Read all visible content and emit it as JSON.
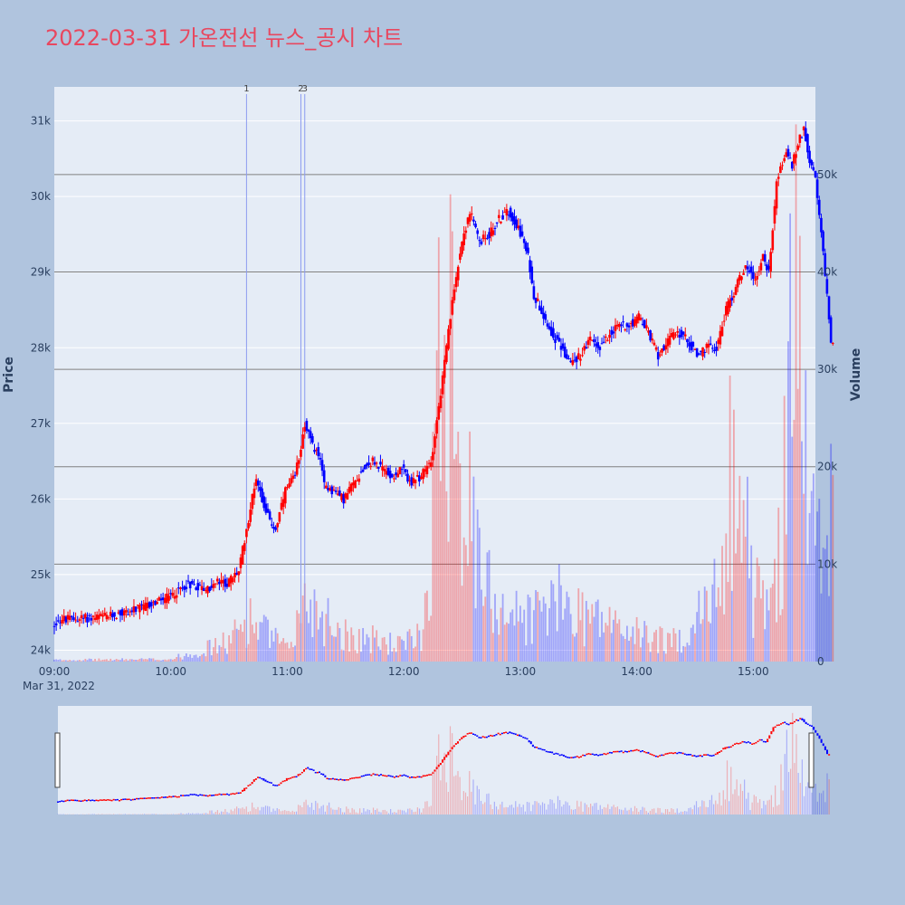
{
  "title": "2022-03-31 가온전선 뉴스_공시 차트",
  "colors": {
    "title": "#e8475f",
    "paper": "#b0c4de",
    "plot": "#e5ecf6",
    "up": "#ff0000",
    "down": "#0000ff",
    "grid": "#ffffff",
    "volume_grid": "#808080",
    "news_line": "#8c9cf0",
    "handle": "#ffffff"
  },
  "chart_data": {
    "type": "candlestick",
    "x_ticks": [
      "09:00",
      "10:00",
      "11:00",
      "12:00",
      "13:00",
      "14:00",
      "15:00"
    ],
    "x_date_label": "Mar 31, 2022",
    "x_range": [
      "09:00",
      "15:32"
    ],
    "price_axis": {
      "title": "Price",
      "ticks": [
        "24k",
        "25k",
        "26k",
        "27k",
        "28k",
        "29k",
        "30k",
        "31k"
      ],
      "tick_values": [
        24000,
        25000,
        26000,
        27000,
        28000,
        29000,
        30000,
        31000
      ],
      "range": [
        23850,
        31450
      ]
    },
    "volume_axis": {
      "title": "Volume",
      "ticks": [
        "0",
        "10k",
        "20k",
        "30k",
        "40k",
        "50k"
      ],
      "tick_values": [
        0,
        10000,
        20000,
        30000,
        40000,
        50000
      ],
      "range": [
        0,
        59000
      ]
    },
    "news_markers": [
      {
        "label": "1",
        "time": "10:39"
      },
      {
        "label": "2",
        "time": "11:07"
      },
      {
        "label": "3",
        "time": "11:09"
      }
    ],
    "price_path": [
      [
        "09:00",
        24300
      ],
      [
        "09:03",
        24400
      ],
      [
        "09:15",
        24420
      ],
      [
        "09:30",
        24450
      ],
      [
        "09:45",
        24550
      ],
      [
        "10:00",
        24700
      ],
      [
        "10:10",
        24880
      ],
      [
        "10:20",
        24800
      ],
      [
        "10:25",
        24900
      ],
      [
        "10:30",
        24880
      ],
      [
        "10:36",
        25050
      ],
      [
        "10:40",
        25600
      ],
      [
        "10:45",
        26300
      ],
      [
        "10:48",
        26000
      ],
      [
        "10:52",
        25700
      ],
      [
        "10:55",
        25600
      ],
      [
        "11:00",
        26100
      ],
      [
        "11:05",
        26300
      ],
      [
        "11:08",
        26700
      ],
      [
        "11:10",
        27000
      ],
      [
        "11:14",
        26700
      ],
      [
        "11:17",
        26600
      ],
      [
        "11:20",
        26200
      ],
      [
        "11:25",
        26100
      ],
      [
        "11:30",
        26000
      ],
      [
        "11:35",
        26200
      ],
      [
        "11:40",
        26400
      ],
      [
        "11:45",
        26500
      ],
      [
        "11:50",
        26400
      ],
      [
        "11:55",
        26300
      ],
      [
        "12:00",
        26400
      ],
      [
        "12:05",
        26200
      ],
      [
        "12:10",
        26300
      ],
      [
        "12:15",
        26500
      ],
      [
        "12:20",
        27400
      ],
      [
        "12:25",
        28400
      ],
      [
        "12:30",
        29300
      ],
      [
        "12:35",
        29800
      ],
      [
        "12:40",
        29400
      ],
      [
        "12:45",
        29500
      ],
      [
        "12:50",
        29700
      ],
      [
        "12:55",
        29800
      ],
      [
        "13:00",
        29600
      ],
      [
        "13:05",
        29200
      ],
      [
        "13:08",
        28700
      ],
      [
        "13:12",
        28500
      ],
      [
        "13:17",
        28200
      ],
      [
        "13:22",
        28000
      ],
      [
        "13:27",
        27800
      ],
      [
        "13:32",
        27900
      ],
      [
        "13:37",
        28100
      ],
      [
        "13:42",
        28000
      ],
      [
        "13:47",
        28200
      ],
      [
        "13:52",
        28300
      ],
      [
        "13:57",
        28300
      ],
      [
        "14:02",
        28400
      ],
      [
        "14:07",
        28200
      ],
      [
        "14:12",
        27900
      ],
      [
        "14:17",
        28100
      ],
      [
        "14:22",
        28200
      ],
      [
        "14:27",
        28100
      ],
      [
        "14:32",
        27900
      ],
      [
        "14:37",
        28000
      ],
      [
        "14:42",
        28000
      ],
      [
        "14:47",
        28500
      ],
      [
        "14:52",
        28800
      ],
      [
        "14:57",
        29100
      ],
      [
        "15:02",
        28900
      ],
      [
        "15:06",
        29200
      ],
      [
        "15:09",
        29000
      ],
      [
        "15:13",
        30200
      ],
      [
        "15:18",
        30600
      ],
      [
        "15:21",
        30400
      ],
      [
        "15:24",
        30700
      ],
      [
        "15:27",
        30900
      ],
      [
        "15:30",
        30500
      ],
      [
        "15:33",
        30200
      ],
      [
        "15:36",
        29500
      ],
      [
        "15:39",
        28700
      ],
      [
        "15:41",
        28100
      ]
    ],
    "volume_profile": [
      [
        "09:00",
        200
      ],
      [
        "10:00",
        300
      ],
      [
        "10:30",
        2500
      ],
      [
        "10:40",
        5500
      ],
      [
        "11:00",
        1500
      ],
      [
        "11:10",
        8000
      ],
      [
        "11:30",
        3500
      ],
      [
        "12:00",
        2000
      ],
      [
        "12:10",
        4000
      ],
      [
        "12:15",
        20000
      ],
      [
        "12:20",
        44000
      ],
      [
        "12:25",
        52000
      ],
      [
        "12:30",
        24000
      ],
      [
        "12:40",
        10000
      ],
      [
        "13:00",
        5500
      ],
      [
        "13:20",
        7500
      ],
      [
        "13:40",
        5500
      ],
      [
        "14:00",
        3500
      ],
      [
        "14:20",
        2500
      ],
      [
        "14:40",
        8000
      ],
      [
        "14:50",
        28000
      ],
      [
        "15:00",
        9000
      ],
      [
        "15:10",
        6500
      ],
      [
        "15:15",
        20000
      ],
      [
        "15:20",
        55000
      ],
      [
        "15:25",
        30000
      ],
      [
        "15:30",
        18000
      ],
      [
        "15:38",
        12000
      ],
      [
        "15:43",
        27000
      ]
    ]
  }
}
